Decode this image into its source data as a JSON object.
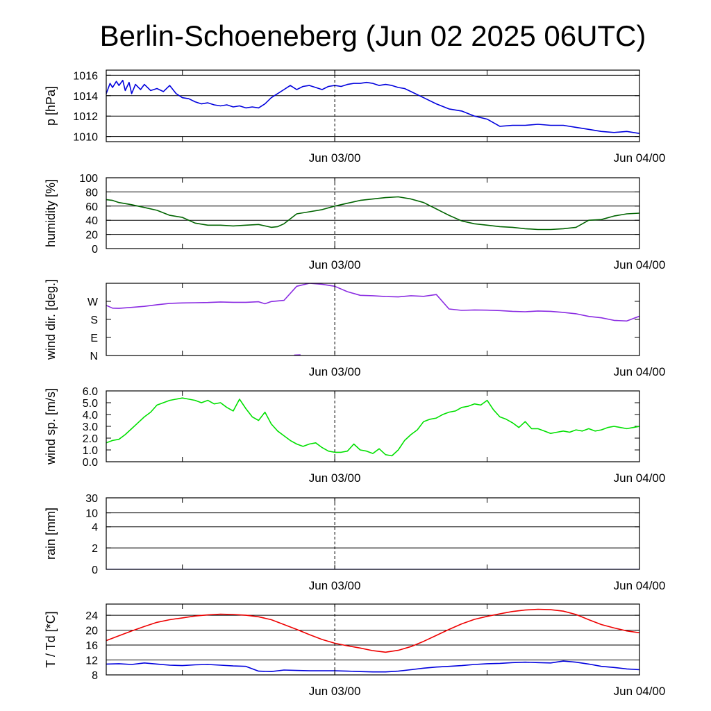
{
  "title": "Berlin-Schoeneberg (Jun 02 2025 06UTC)",
  "x_tick_labels": [
    "Jun 03/00",
    "Jun 04/00"
  ],
  "chart_data": [
    {
      "type": "line",
      "ylabel": "p [hPa]",
      "ylim": [
        1009.5,
        1016.5
      ],
      "yticks": [
        1010,
        1012,
        1014,
        1016
      ],
      "ytick_labels": [
        "1010",
        "1012",
        "1014",
        "1016"
      ],
      "grid": true,
      "xlim_hours": [
        0,
        42
      ],
      "series": [
        {
          "color": "#0000dd",
          "x": [
            0,
            0.3,
            0.5,
            0.8,
            1.0,
            1.3,
            1.5,
            1.8,
            2.0,
            2.3,
            2.7,
            3.0,
            3.5,
            4.0,
            4.5,
            5.0,
            5.5,
            6.0,
            6.5,
            7.0,
            7.5,
            8.0,
            8.5,
            9.0,
            9.5,
            10.0,
            10.5,
            11.0,
            11.5,
            12.0,
            12.5,
            13.0,
            13.5,
            14.0,
            14.5,
            15.0,
            15.5,
            16.0,
            16.5,
            17.0,
            17.5,
            18.0,
            18.5,
            19.0,
            19.5,
            20.0,
            20.5,
            21.0,
            21.5,
            22.0,
            22.5,
            23.0,
            23.5,
            24.0,
            25.0,
            26.0,
            27.0,
            28.0,
            29.0,
            30.0,
            31.0,
            32.0,
            33.0,
            34.0,
            35.0,
            36.0,
            37.0,
            38.0,
            39.0,
            40.0,
            41.0,
            42.0
          ],
          "values": [
            1014.2,
            1015.2,
            1014.8,
            1015.4,
            1015.0,
            1015.5,
            1014.5,
            1015.3,
            1014.2,
            1015.1,
            1014.6,
            1015.1,
            1014.5,
            1014.7,
            1014.4,
            1015.0,
            1014.2,
            1013.8,
            1013.7,
            1013.4,
            1013.2,
            1013.3,
            1013.1,
            1013.0,
            1013.1,
            1012.9,
            1013.0,
            1012.8,
            1012.9,
            1012.8,
            1013.2,
            1013.8,
            1014.2,
            1014.6,
            1015.0,
            1014.6,
            1014.9,
            1015.0,
            1014.8,
            1014.6,
            1014.9,
            1015.0,
            1014.9,
            1015.1,
            1015.2,
            1015.2,
            1015.3,
            1015.2,
            1015.0,
            1015.1,
            1015.0,
            1014.8,
            1014.7,
            1014.4,
            1013.8,
            1013.2,
            1012.7,
            1012.5,
            1012.0,
            1011.7,
            1011.0,
            1011.1,
            1011.1,
            1011.2,
            1011.1,
            1011.1,
            1010.9,
            1010.7,
            1010.5,
            1010.4,
            1010.5,
            1010.3
          ]
        }
      ]
    },
    {
      "type": "line",
      "ylabel": "humidity [%]",
      "ylim": [
        0,
        100
      ],
      "yticks": [
        0,
        20,
        40,
        60,
        80,
        100
      ],
      "ytick_labels": [
        "0",
        "20",
        "40",
        "60",
        "80",
        "100"
      ],
      "grid": true,
      "xlim_hours": [
        0,
        42
      ],
      "series": [
        {
          "color": "#006400",
          "x": [
            0,
            0.5,
            1,
            2,
            3,
            4,
            5,
            6,
            7,
            8,
            9,
            10,
            11,
            12,
            13,
            13.5,
            14,
            15,
            16,
            17,
            18,
            19,
            20,
            21,
            22,
            23,
            24,
            25,
            26,
            27,
            28,
            29,
            30,
            31,
            32,
            33,
            34,
            35,
            36,
            37,
            38,
            39,
            40,
            41,
            42
          ],
          "values": [
            69,
            68,
            65,
            62,
            58,
            54,
            47,
            44,
            36,
            33,
            33,
            32,
            33,
            34,
            30,
            31,
            35,
            49,
            52,
            55,
            60,
            64,
            68,
            70,
            72,
            73,
            70,
            65,
            56,
            47,
            39,
            35,
            33,
            31,
            30,
            28,
            27,
            27,
            28,
            30,
            40,
            41,
            46,
            49,
            50
          ]
        }
      ]
    },
    {
      "type": "line",
      "ylabel": "wind dir. [deg.]",
      "ylim": [
        0,
        360
      ],
      "yticks": [
        0,
        90,
        180,
        270
      ],
      "ytick_labels": [
        "N",
        "E",
        "S",
        "W"
      ],
      "grid": false,
      "xlim_hours": [
        0,
        42
      ],
      "series": [
        {
          "color": "#8a2be2",
          "x": [
            0,
            0.5,
            1,
            2,
            3,
            4,
            5,
            6,
            7,
            8,
            9,
            10,
            11,
            12,
            12.5,
            13,
            14,
            15,
            16,
            17,
            18,
            19,
            20,
            21,
            22,
            23,
            24,
            25,
            26,
            27,
            28,
            29,
            30,
            31,
            32,
            33,
            34,
            35,
            36,
            37,
            38,
            39,
            40,
            41,
            42
          ],
          "values": [
            250,
            236,
            235,
            240,
            245,
            253,
            260,
            262,
            263,
            264,
            267,
            265,
            265,
            268,
            258,
            269,
            275,
            345,
            360,
            355,
            345,
            318,
            300,
            298,
            294,
            292,
            298,
            295,
            304,
            232,
            225,
            227,
            226,
            224,
            220,
            218,
            222,
            220,
            215,
            208,
            195,
            188,
            175,
            172,
            196
          ]
        },
        {
          "color": "#8a2be2",
          "x": [
            14.8,
            15.3
          ],
          "values": [
            2,
            3
          ]
        }
      ]
    },
    {
      "type": "line",
      "ylabel": "wind sp. [m/s]",
      "ylim": [
        0,
        6
      ],
      "yticks": [
        0,
        1,
        2,
        3,
        4,
        5,
        6
      ],
      "ytick_labels": [
        "0.0",
        "1.0",
        "2.0",
        "3.0",
        "4.0",
        "5.0",
        "6.0"
      ],
      "grid": false,
      "xlim_hours": [
        0,
        42
      ],
      "series": [
        {
          "color": "#00e000",
          "x": [
            0,
            0.5,
            1,
            1.5,
            2,
            2.5,
            3,
            3.5,
            4,
            4.5,
            5,
            5.5,
            6,
            6.5,
            7,
            7.5,
            8,
            8.5,
            9,
            9.5,
            10,
            10.5,
            11,
            11.5,
            12,
            12.5,
            13,
            13.5,
            14,
            14.5,
            15,
            15.5,
            16,
            16.5,
            17,
            17.5,
            18,
            18.5,
            19,
            19.5,
            20,
            20.5,
            21,
            21.5,
            22,
            22.5,
            23,
            23.5,
            24,
            24.5,
            25,
            25.5,
            26,
            26.5,
            27,
            27.5,
            28,
            28.5,
            29,
            29.5,
            30,
            30.5,
            31,
            31.5,
            32,
            32.5,
            33,
            33.5,
            34,
            34.5,
            35,
            35.5,
            36,
            36.5,
            37,
            37.5,
            38,
            38.5,
            39,
            39.5,
            40,
            40.5,
            41,
            41.5,
            42
          ],
          "values": [
            1.6,
            1.8,
            1.9,
            2.3,
            2.8,
            3.3,
            3.8,
            4.2,
            4.8,
            5.0,
            5.2,
            5.3,
            5.4,
            5.3,
            5.2,
            5.0,
            5.2,
            4.9,
            5.0,
            4.6,
            4.3,
            5.3,
            4.5,
            3.8,
            3.5,
            4.2,
            3.2,
            2.6,
            2.2,
            1.8,
            1.5,
            1.3,
            1.5,
            1.6,
            1.2,
            0.9,
            0.8,
            0.8,
            0.9,
            1.5,
            1.0,
            0.9,
            0.7,
            1.1,
            0.6,
            0.5,
            1.0,
            1.8,
            2.3,
            2.7,
            3.4,
            3.6,
            3.7,
            4.0,
            4.2,
            4.3,
            4.6,
            4.7,
            4.9,
            4.8,
            5.2,
            4.4,
            3.8,
            3.6,
            3.3,
            2.9,
            3.4,
            2.8,
            2.8,
            2.6,
            2.4,
            2.5,
            2.6,
            2.5,
            2.7,
            2.6,
            2.8,
            2.6,
            2.7,
            2.9,
            3.0,
            2.9,
            2.8,
            2.9,
            3.0
          ]
        }
      ]
    },
    {
      "type": "line",
      "ylabel": "rain [mm]",
      "ylim": [
        0,
        30
      ],
      "yticks": [
        0,
        2,
        4,
        10,
        30
      ],
      "ytick_labels": [
        "0",
        "2",
        "4",
        "10",
        "30"
      ],
      "grid": true,
      "scale": "nonlinear",
      "xlim_hours": [
        0,
        42
      ],
      "series": [
        {
          "color": "#0000dd",
          "x": [
            0,
            42
          ],
          "values": [
            0,
            0
          ]
        }
      ]
    },
    {
      "type": "line",
      "ylabel": "T / Td [*C]",
      "ylim": [
        8,
        27
      ],
      "yticks": [
        8,
        12,
        16,
        20,
        24
      ],
      "ytick_labels": [
        "8",
        "12",
        "16",
        "20",
        "24"
      ],
      "grid": true,
      "xlim_hours": [
        0,
        42
      ],
      "series": [
        {
          "color": "#ee0000",
          "x": [
            0,
            1,
            2,
            3,
            4,
            5,
            6,
            7,
            8,
            9,
            10,
            11,
            12,
            13,
            14,
            15,
            16,
            17,
            18,
            19,
            20,
            21,
            22,
            23,
            24,
            25,
            26,
            27,
            28,
            29,
            30,
            31,
            32,
            33,
            34,
            35,
            36,
            37,
            38,
            39,
            40,
            41,
            42
          ],
          "values": [
            17.2,
            18.5,
            19.8,
            21.0,
            22.1,
            22.8,
            23.3,
            23.8,
            24.1,
            24.3,
            24.2,
            24.0,
            23.6,
            22.8,
            21.5,
            20.2,
            18.8,
            17.5,
            16.5,
            15.8,
            15.2,
            14.5,
            14.1,
            14.6,
            15.6,
            17.0,
            18.6,
            20.2,
            21.7,
            22.9,
            23.7,
            24.4,
            25.0,
            25.4,
            25.6,
            25.5,
            25.1,
            24.2,
            22.8,
            21.5,
            20.6,
            19.8,
            19.3
          ]
        },
        {
          "color": "#0000dd",
          "x": [
            0,
            1,
            2,
            3,
            4,
            5,
            6,
            7,
            8,
            9,
            10,
            11,
            12,
            13,
            14,
            15,
            16,
            17,
            18,
            19,
            20,
            21,
            22,
            23,
            24,
            25,
            26,
            27,
            28,
            29,
            30,
            31,
            32,
            33,
            34,
            35,
            36,
            37,
            38,
            39,
            40,
            41,
            42
          ],
          "values": [
            10.9,
            11.0,
            10.8,
            11.2,
            10.9,
            10.6,
            10.5,
            10.7,
            10.8,
            10.6,
            10.4,
            10.3,
            9.0,
            8.9,
            9.3,
            9.2,
            9.1,
            9.1,
            9.1,
            9.0,
            8.9,
            8.8,
            8.8,
            9.0,
            9.4,
            9.8,
            10.1,
            10.3,
            10.5,
            10.8,
            11.0,
            11.1,
            11.3,
            11.4,
            11.3,
            11.2,
            11.7,
            11.4,
            10.9,
            10.3,
            10.0,
            9.6,
            9.4
          ]
        }
      ]
    }
  ]
}
